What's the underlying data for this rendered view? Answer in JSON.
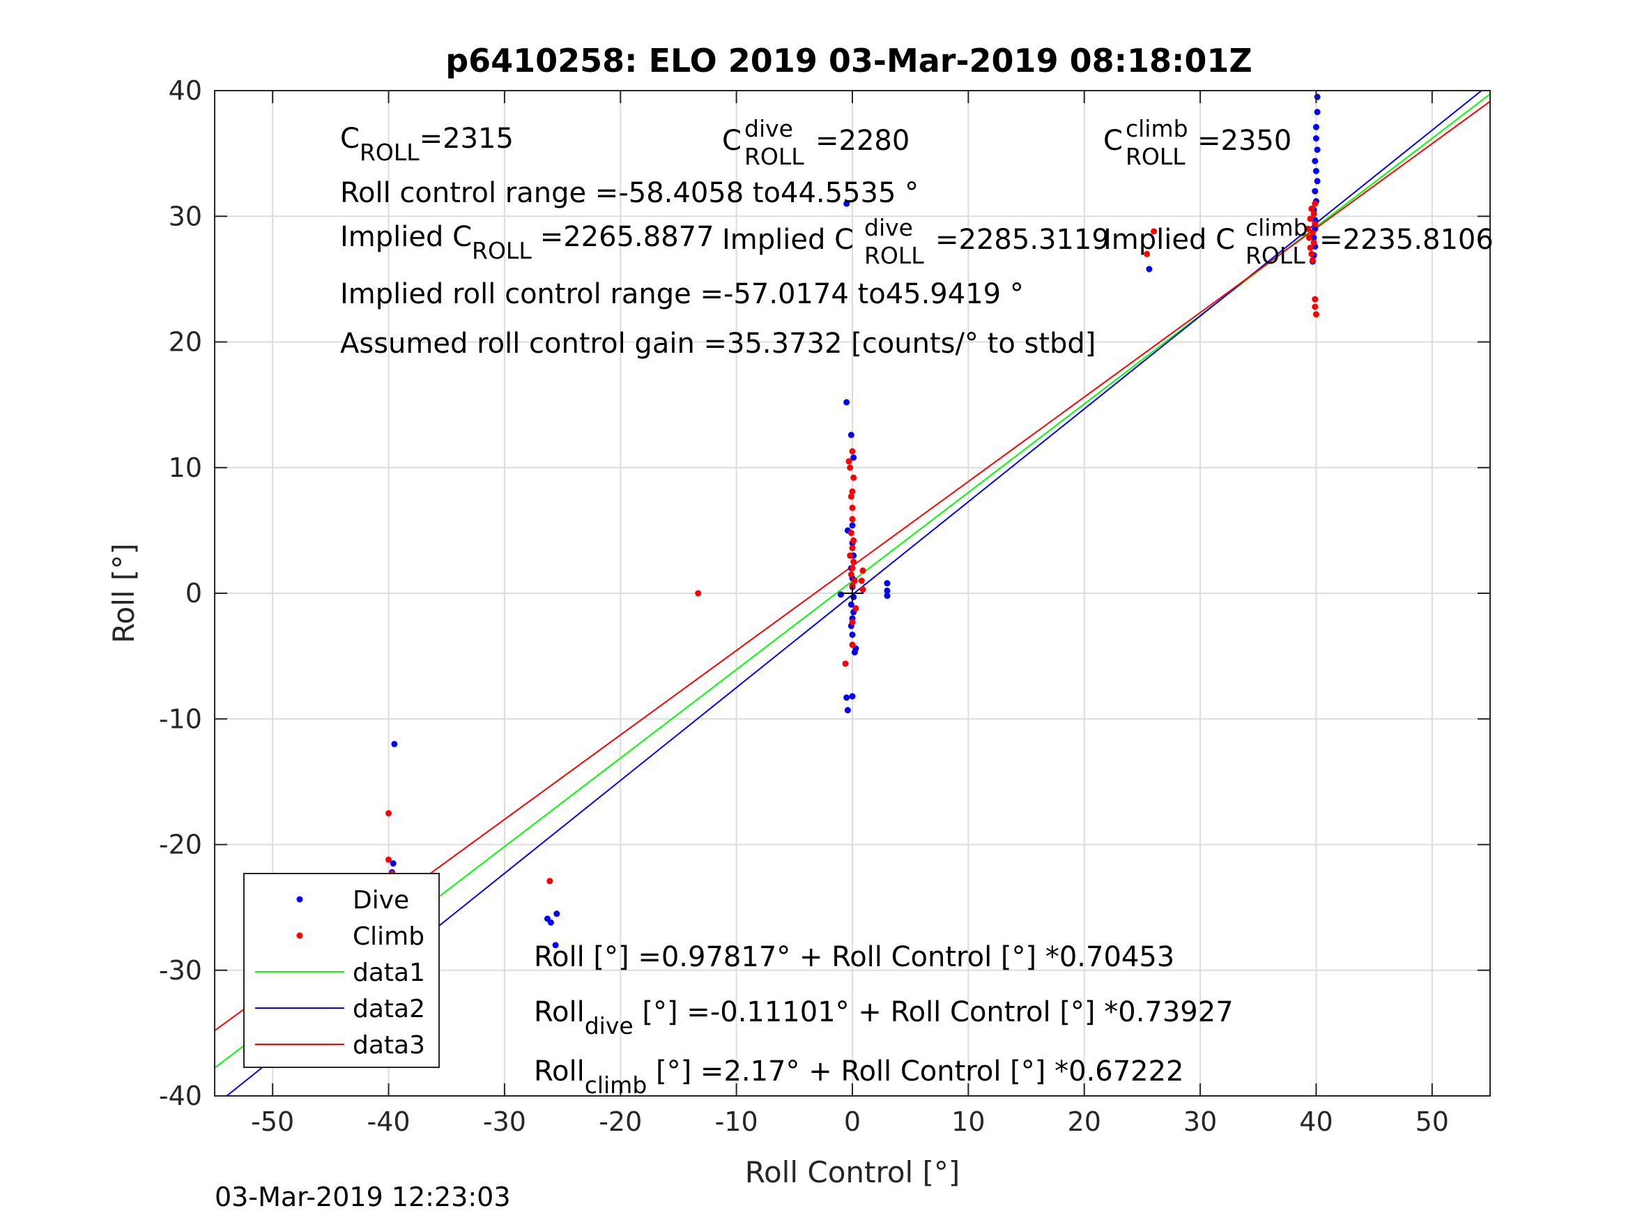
{
  "chart_data": {
    "type": "scatter",
    "title": "p6410258: ELO 2019 03-Mar-2019 08:18:01Z",
    "xlabel": "Roll Control [°]",
    "ylabel": "Roll [°]",
    "xlim": [
      -55,
      55
    ],
    "ylim": [
      -40,
      40
    ],
    "xticks": [
      -50,
      -40,
      -30,
      -20,
      -10,
      0,
      10,
      20,
      30,
      40,
      50
    ],
    "yticks": [
      -40,
      -30,
      -20,
      -10,
      0,
      10,
      20,
      30,
      40
    ],
    "grid": true,
    "legend_position": "bottom-left",
    "timestamp": "03-Mar-2019 12:23:03",
    "legend": [
      {
        "label": "Dive",
        "color": "#0000ff",
        "kind": "marker"
      },
      {
        "label": "Climb",
        "color": "#ff0000",
        "kind": "marker"
      },
      {
        "label": "data1",
        "color": "#00ff00",
        "kind": "line"
      },
      {
        "label": "data2",
        "color": "#0000ff",
        "kind": "line"
      },
      {
        "label": "data3",
        "color": "#ff0000",
        "kind": "line"
      }
    ],
    "fit_lines": [
      {
        "name": "data1",
        "color": "#00ff00",
        "intercept": 0.97817,
        "slope": 0.70453
      },
      {
        "name": "data2",
        "color": "#0000ff",
        "intercept": -0.11101,
        "slope": 0.73927
      },
      {
        "name": "data3",
        "color": "#ff0000",
        "intercept": 2.17,
        "slope": 0.67222
      }
    ],
    "series": [
      {
        "name": "Dive",
        "color": "#0000ff",
        "points": [
          [
            -39.5,
            -12
          ],
          [
            -39.6,
            -21.5
          ],
          [
            -39.7,
            -22.2
          ],
          [
            -39.8,
            -24.5
          ],
          [
            -39.6,
            -25.6
          ],
          [
            -39.7,
            -26.5
          ],
          [
            -39.5,
            -27.2
          ],
          [
            -39.6,
            -27.9
          ],
          [
            -39.8,
            -28.4
          ],
          [
            -39.6,
            -29.0
          ],
          [
            -39.5,
            -29.6
          ],
          [
            -39.7,
            -30.2
          ],
          [
            -39.6,
            -30.4
          ],
          [
            -26.3,
            -25.9
          ],
          [
            -26.0,
            -26.2
          ],
          [
            -25.5,
            -25.5
          ],
          [
            -25.6,
            -28.0
          ],
          [
            -0.5,
            31.0
          ],
          [
            -0.5,
            15.2
          ],
          [
            -0.1,
            12.6
          ],
          [
            0.1,
            10.8
          ],
          [
            -0.4,
            5.0
          ],
          [
            0.0,
            5.4
          ],
          [
            0.0,
            4.0
          ],
          [
            0.1,
            3.0
          ],
          [
            -0.1,
            2.0
          ],
          [
            0.0,
            1.2
          ],
          [
            0.0,
            0.5
          ],
          [
            0.1,
            -0.3
          ],
          [
            -0.1,
            -0.9
          ],
          [
            0.1,
            -1.5
          ],
          [
            0.0,
            -2.0
          ],
          [
            -0.1,
            -2.6
          ],
          [
            0.0,
            -3.3
          ],
          [
            0.2,
            -4.7
          ],
          [
            0.3,
            -4.4
          ],
          [
            -0.5,
            -8.3
          ],
          [
            0.0,
            -8.2
          ],
          [
            -0.4,
            -9.3
          ],
          [
            3.0,
            0.8
          ],
          [
            3.0,
            0.2
          ],
          [
            3.0,
            -0.2
          ],
          [
            -1.0,
            -0.1
          ],
          [
            40.1,
            39.5
          ],
          [
            40.1,
            38.3
          ],
          [
            40.0,
            37.1
          ],
          [
            40.0,
            36.2
          ],
          [
            40.1,
            35.3
          ],
          [
            39.9,
            34.4
          ],
          [
            40.0,
            33.6
          ],
          [
            40.1,
            32.8
          ],
          [
            39.9,
            32.0
          ],
          [
            40.0,
            31.2
          ],
          [
            39.8,
            30.5
          ],
          [
            39.9,
            29.7
          ],
          [
            39.9,
            29.0
          ],
          [
            39.8,
            28.3
          ],
          [
            39.9,
            27.6
          ],
          [
            39.8,
            26.9
          ],
          [
            39.7,
            26.4
          ],
          [
            25.6,
            25.8
          ]
        ]
      },
      {
        "name": "Climb",
        "color": "#ff0000",
        "points": [
          [
            -40.0,
            -17.5
          ],
          [
            -40.0,
            -21.2
          ],
          [
            -39.7,
            -22.3
          ],
          [
            -40.0,
            -23.8
          ],
          [
            -39.9,
            -24.6
          ],
          [
            -40.0,
            -25.0
          ],
          [
            -39.8,
            -25.4
          ],
          [
            -40.1,
            -25.9
          ],
          [
            -39.9,
            -26.3
          ],
          [
            -40.0,
            -26.7
          ],
          [
            -40.1,
            -27.2
          ],
          [
            -39.7,
            -27.6
          ],
          [
            -26.1,
            -22.9
          ],
          [
            -13.3,
            0.0
          ],
          [
            -0.6,
            -5.6
          ],
          [
            0.0,
            -4.1
          ],
          [
            0.0,
            -2.3
          ],
          [
            0.3,
            -1.2
          ],
          [
            0.0,
            11.3
          ],
          [
            -0.3,
            10.5
          ],
          [
            -0.2,
            10.0
          ],
          [
            0.1,
            9.2
          ],
          [
            0.0,
            8.1
          ],
          [
            -0.1,
            7.7
          ],
          [
            0.0,
            6.8
          ],
          [
            0.0,
            5.9
          ],
          [
            -0.1,
            4.8
          ],
          [
            0.1,
            4.2
          ],
          [
            0.0,
            3.6
          ],
          [
            -0.2,
            3.0
          ],
          [
            0.1,
            2.5
          ],
          [
            0.0,
            2.0
          ],
          [
            -0.1,
            1.5
          ],
          [
            0.2,
            1.0
          ],
          [
            0.0,
            0.6
          ],
          [
            0.9,
            1.8
          ],
          [
            0.8,
            1.0
          ],
          [
            0.9,
            0.3
          ],
          [
            25.4,
            27.0
          ],
          [
            26.0,
            28.8
          ],
          [
            39.9,
            31.0
          ],
          [
            39.6,
            30.6
          ],
          [
            39.8,
            30.2
          ],
          [
            39.5,
            29.8
          ],
          [
            39.9,
            29.4
          ],
          [
            39.3,
            29.0
          ],
          [
            39.7,
            28.7
          ],
          [
            39.4,
            28.3
          ],
          [
            39.8,
            27.9
          ],
          [
            39.5,
            27.5
          ],
          [
            39.6,
            27.0
          ],
          [
            39.7,
            26.5
          ],
          [
            39.9,
            23.4
          ],
          [
            39.9,
            22.8
          ],
          [
            40.0,
            22.2
          ]
        ]
      }
    ],
    "origin_marker": [
      0,
      0
    ]
  },
  "annotations": {
    "c_roll": {
      "main": "C",
      "sub": "ROLL",
      "value": "=2315"
    },
    "c_roll_dive": {
      "main": "C",
      "sup": "dive",
      "sub": "ROLL",
      "value": "=2280"
    },
    "c_roll_climb": {
      "main": "C",
      "sup": "climb",
      "sub": "ROLL",
      "value": "=2350"
    },
    "roll_control_range": "Roll control range =-58.4058 to44.5535 °",
    "implied_c_roll": {
      "main": "Implied C",
      "sub": "ROLL",
      "value": "=2265.8877"
    },
    "implied_c_roll_dive": {
      "main": "Implied C",
      "sup": "dive",
      "sub": "ROLL",
      "value": "=2285.3119"
    },
    "implied_c_roll_climb": {
      "main": "Implied C",
      "sup": "climb",
      "sub": "ROLL",
      "value": "=2235.8106"
    },
    "implied_range": "Implied roll control range =-57.0174 to45.9419 °",
    "assumed_gain": "Assumed roll control gain =35.3732 [counts/° to stbd]",
    "eq_all": "Roll [°] =0.97817° + Roll Control [°] *0.70453",
    "eq_dive": {
      "main": "Roll",
      "sub": "dive",
      "rest": " [°] =-0.11101° + Roll Control [°] *0.73927"
    },
    "eq_climb": {
      "main": "Roll",
      "sub": "climb",
      "rest": " [°] =2.17° + Roll Control [°] *0.67222"
    }
  }
}
